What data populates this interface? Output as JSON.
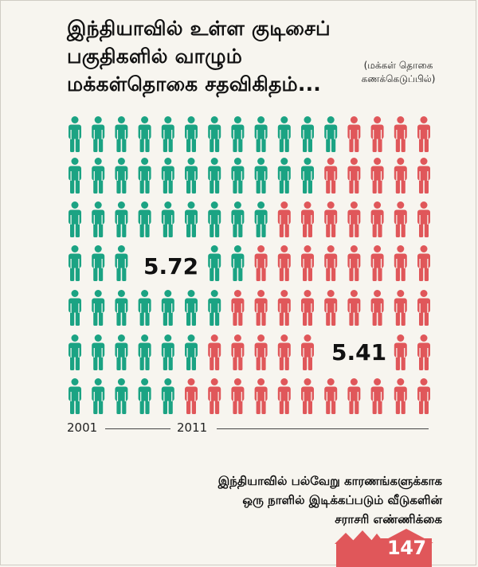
{
  "title_lines": [
    "இந்தியாவில் உள்ள குடிசைப்",
    "பகுதிகளில் வாழும்",
    "மக்கள்தொகை சதவிகிதம்..."
  ],
  "note_lines": [
    "(மக்கள் தொகை",
    "கணக்கெடுப்பில்)"
  ],
  "colors": {
    "green": "#1ba383",
    "red": "#e0575a"
  },
  "chart_data": {
    "type": "pictogram",
    "series": [
      {
        "year": "2001",
        "value": 5.72,
        "label": "5.72",
        "color": "#1ba383"
      },
      {
        "year": "2011",
        "value": 5.41,
        "label": "5.41",
        "color": "#e0575a"
      }
    ]
  },
  "footer_lines": [
    "இந்தியாவில் பல்வேறு காரணங்களுக்காக",
    "ஒரு நாளில் இடிக்கப்படும் வீடுகளின்",
    "சராசரி எண்ணிக்கை"
  ],
  "house_count": "147"
}
